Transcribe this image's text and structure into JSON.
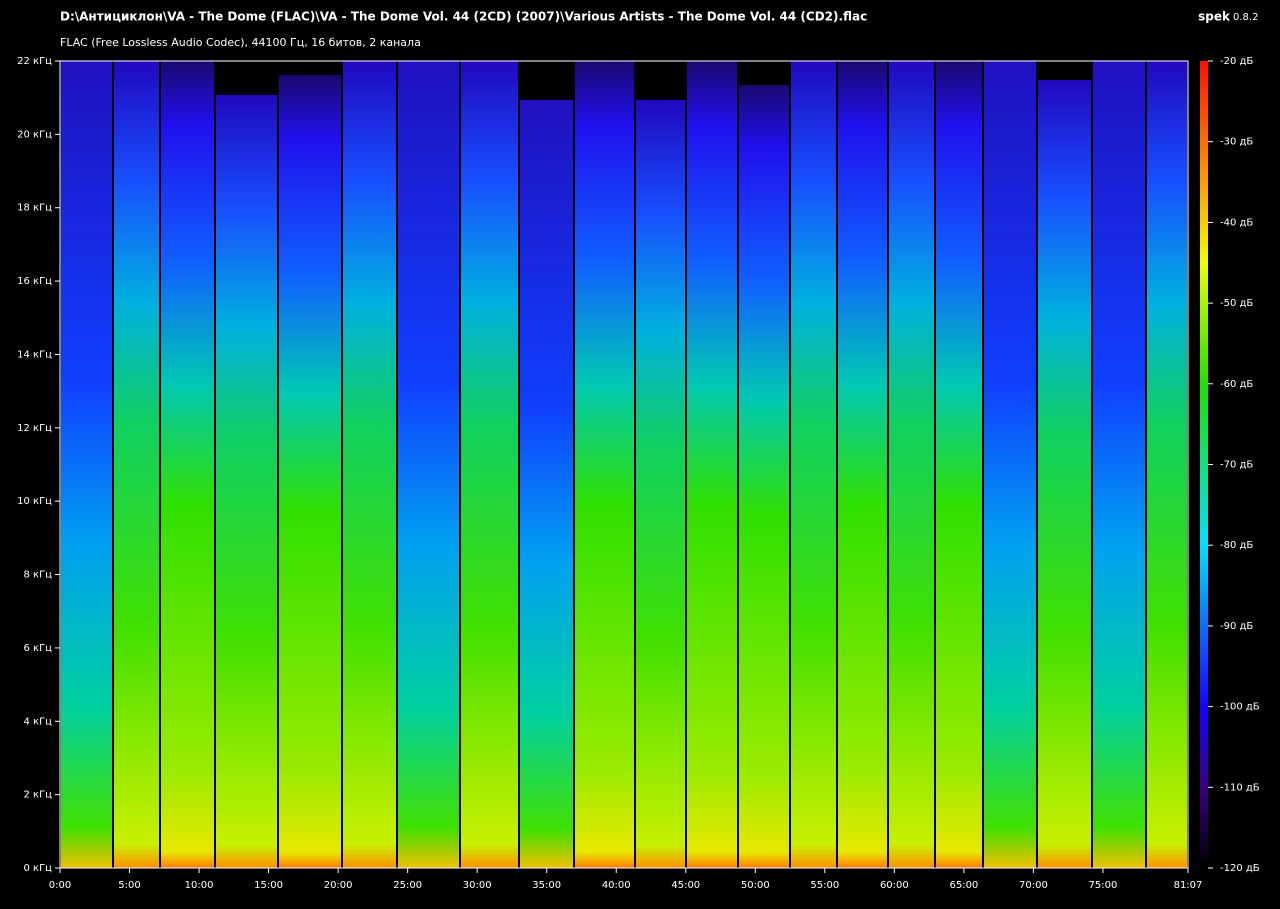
{
  "header": {
    "file_path": "D:\\Антициклон\\VA - The Dome (FLAC)\\VA - The Dome Vol. 44 (2CD) (2007)\\Various Artists - The Dome Vol. 44 (CD2).flac",
    "file_info": "FLAC (Free Lossless Audio Codec), 44100 Гц, 16 битов, 2 канала",
    "app_name": "spek",
    "app_version": "0.8.2"
  },
  "frequency_axis": {
    "lim": [
      0,
      22
    ],
    "ticks": [
      {
        "value": 0,
        "label": "0 кГц"
      },
      {
        "value": 2,
        "label": "2 кГц"
      },
      {
        "value": 4,
        "label": "4 кГц"
      },
      {
        "value": 6,
        "label": "6 кГц"
      },
      {
        "value": 8,
        "label": "8 кГц"
      },
      {
        "value": 10,
        "label": "10 кГц"
      },
      {
        "value": 12,
        "label": "12 кГц"
      },
      {
        "value": 14,
        "label": "14 кГц"
      },
      {
        "value": 16,
        "label": "16 кГц"
      },
      {
        "value": 18,
        "label": "18 кГц"
      },
      {
        "value": 20,
        "label": "20 кГц"
      },
      {
        "value": 22,
        "label": "22 кГц"
      }
    ]
  },
  "time_axis": {
    "lim": [
      0,
      81.1167
    ],
    "ticks": [
      {
        "value": 0,
        "label": "0:00"
      },
      {
        "value": 5,
        "label": "5:00"
      },
      {
        "value": 10,
        "label": "10:00"
      },
      {
        "value": 15,
        "label": "15:00"
      },
      {
        "value": 20,
        "label": "20:00"
      },
      {
        "value": 25,
        "label": "25:00"
      },
      {
        "value": 30,
        "label": "30:00"
      },
      {
        "value": 35,
        "label": "35:00"
      },
      {
        "value": 40,
        "label": "40:00"
      },
      {
        "value": 45,
        "label": "45:00"
      },
      {
        "value": 50,
        "label": "50:00"
      },
      {
        "value": 55,
        "label": "55:00"
      },
      {
        "value": 60,
        "label": "60:00"
      },
      {
        "value": 65,
        "label": "65:00"
      },
      {
        "value": 70,
        "label": "70:00"
      },
      {
        "value": 75,
        "label": "75:00"
      },
      {
        "value": 81.1167,
        "label": "81:07"
      }
    ]
  },
  "level_scale": {
    "lim": [
      -120,
      -20
    ],
    "ticks": [
      {
        "value": -20,
        "label": "-20 дБ"
      },
      {
        "value": -30,
        "label": "-30 дБ"
      },
      {
        "value": -40,
        "label": "-40 дБ"
      },
      {
        "value": -50,
        "label": "-50 дБ"
      },
      {
        "value": -60,
        "label": "-60 дБ"
      },
      {
        "value": -70,
        "label": "-70 дБ"
      },
      {
        "value": -80,
        "label": "-80 дБ"
      },
      {
        "value": -90,
        "label": "-90 дБ"
      },
      {
        "value": -100,
        "label": "-100 дБ"
      },
      {
        "value": -110,
        "label": "-110 дБ"
      },
      {
        "value": -120,
        "label": "-120 дБ"
      }
    ]
  }
}
